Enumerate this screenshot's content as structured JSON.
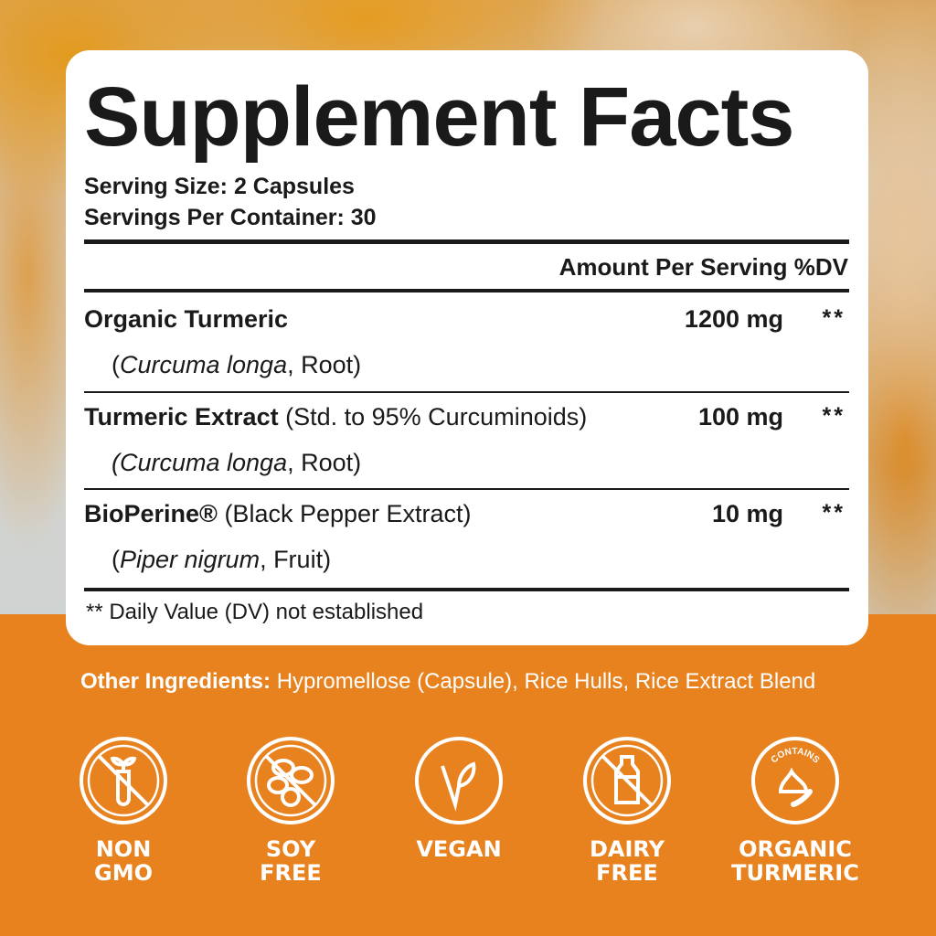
{
  "colors": {
    "brand_orange": "#E8821F",
    "card": "#FFFFFF",
    "text": "#1A1A1A"
  },
  "title": "Supplement Facts",
  "serving_size": "Serving Size: 2 Capsules",
  "servings_per_container": "Servings Per Container: 30",
  "header": {
    "amount": "Amount Per Serving",
    "dv": "%DV"
  },
  "rows": [
    {
      "name": "Organic Turmeric",
      "detail": "",
      "source_latin": "Curcuma longa",
      "source_part": ", Root",
      "amount": "1200 mg",
      "dv": "**"
    },
    {
      "name": "Turmeric Extract",
      "detail": " (Std. to 95% Curcuminoids)",
      "source_latin": "Curcuma longa",
      "source_part": ", Root",
      "amount": "100 mg",
      "dv": "**"
    },
    {
      "name": "BioPerine®",
      "detail": " (Black Pepper Extract)",
      "source_latin": "Piper nigrum",
      "source_part": ", Fruit",
      "amount": "10 mg",
      "dv": "**"
    }
  ],
  "footnote": "** Daily Value (DV) not established",
  "other_ingredients": {
    "label": "Other Ingredients:",
    "value": " Hypromellose (Capsule), Rice Hulls, Rice Extract Blend"
  },
  "badges": [
    {
      "icon": "non-gmo-icon",
      "line1": "NON",
      "line2": "GMO"
    },
    {
      "icon": "soy-free-icon",
      "line1": "SOY",
      "line2": "FREE"
    },
    {
      "icon": "vegan-icon",
      "line1": "VEGAN",
      "line2": ""
    },
    {
      "icon": "dairy-free-icon",
      "line1": "DAIRY",
      "line2": "FREE"
    },
    {
      "icon": "organic-turmeric-icon",
      "line1": "ORGANIC",
      "line2": "TURMERIC",
      "ring_text": "CONTAINS"
    }
  ]
}
